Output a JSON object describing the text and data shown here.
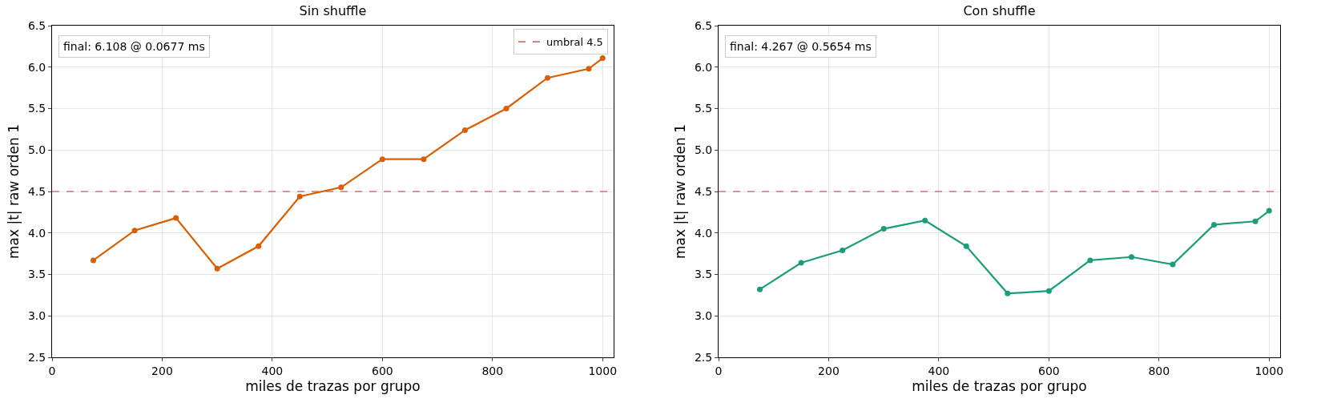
{
  "chart_data": [
    {
      "type": "line",
      "title": "Sin shuffle",
      "xlabel": "miles de trazas por grupo",
      "ylabel": "max |t| raw orden 1",
      "annotations": [
        "final: 6.108 @ 0.0677 ms"
      ],
      "x": [
        75,
        150,
        225,
        300,
        375,
        450,
        525,
        600,
        675,
        750,
        825,
        900,
        975,
        1000
      ],
      "series": [
        {
          "color": "#d95f02",
          "values": [
            3.67,
            4.03,
            4.18,
            3.57,
            3.84,
            4.44,
            4.55,
            4.89,
            4.89,
            5.24,
            5.5,
            5.87,
            5.98,
            6.108
          ]
        }
      ],
      "ref_lines": [
        {
          "axis": "y",
          "value": 4.5,
          "label": "umbral 4.5",
          "color": "#c0392b",
          "line_style": "dashed"
        }
      ],
      "xlim": [
        0,
        1020
      ],
      "xticks": [
        0,
        200,
        400,
        600,
        800,
        1000
      ],
      "ylim": [
        2.5,
        6.5
      ],
      "yticks": [
        2.5,
        {
          "value": 3,
          "label": "3.0"
        },
        3.5,
        {
          "value": 4,
          "label": "4.0"
        },
        4.5,
        {
          "value": 5,
          "label": "5.0"
        },
        5.5,
        {
          "value": 6,
          "label": "6.0"
        },
        6.5
      ],
      "grid": true,
      "legend": "top right",
      "marker": "circle",
      "line_style": "solid"
    },
    {
      "type": "line",
      "title": "Con shuffle",
      "xlabel": "miles de trazas por grupo",
      "ylabel": "max |t| raw orden 1",
      "annotations": [
        "final: 4.267 @ 0.5654 ms"
      ],
      "x": [
        75,
        150,
        225,
        300,
        375,
        450,
        525,
        600,
        675,
        750,
        825,
        900,
        975,
        1000
      ],
      "series": [
        {
          "color": "#1b9e77",
          "values": [
            3.32,
            3.64,
            3.79,
            4.05,
            4.15,
            3.84,
            3.27,
            3.3,
            3.67,
            3.71,
            3.62,
            4.1,
            4.14,
            4.267
          ]
        }
      ],
      "ref_lines": [
        {
          "axis": "y",
          "value": 4.5,
          "color": "#c0392b",
          "line_style": "dashed"
        }
      ],
      "xlim": [
        0,
        1020
      ],
      "xticks": [
        0,
        200,
        400,
        600,
        800,
        1000
      ],
      "ylim": [
        2.5,
        6.5
      ],
      "yticks": [
        2.5,
        {
          "value": 3,
          "label": "3.0"
        },
        3.5,
        {
          "value": 4,
          "label": "4.0"
        },
        4.5,
        {
          "value": 5,
          "label": "5.0"
        },
        5.5,
        {
          "value": 6,
          "label": "6.0"
        },
        6.5
      ],
      "grid": true,
      "marker": "circle",
      "line_style": "solid"
    }
  ]
}
